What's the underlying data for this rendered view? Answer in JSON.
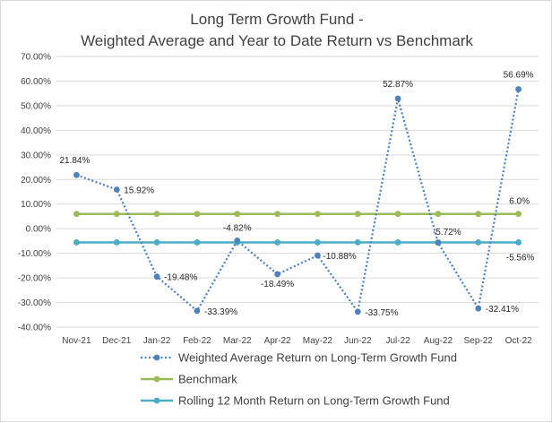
{
  "chart_data": {
    "type": "line",
    "title_line1": "Long Term Growth Fund -",
    "title_line2": "Weighted Average and Year to Date Return vs Benchmark",
    "categories": [
      "Nov-21",
      "Dec-21",
      "Jan-22",
      "Feb-22",
      "Mar-22",
      "Apr-22",
      "May-22",
      "Jun-22",
      "Jul-22",
      "Aug-22",
      "Sep-22",
      "Oct-22"
    ],
    "y_ticks": [
      "70.00%",
      "60.00%",
      "50.00%",
      "40.00%",
      "30.00%",
      "20.00%",
      "10.00%",
      "0.00%",
      "-10.00%",
      "-20.00%",
      "-30.00%",
      "-40.00%"
    ],
    "ylim": [
      -40,
      70
    ],
    "series": [
      {
        "name": "Weighted Average Return on Long-Term Growth Fund",
        "color": "#4f81bd",
        "style": "dotted-markers",
        "values": [
          21.84,
          15.92,
          -19.48,
          -33.39,
          -4.82,
          -18.49,
          -10.88,
          -33.75,
          52.87,
          -5.72,
          -32.41,
          56.69
        ],
        "labels": [
          "21.84%",
          "15.92%",
          "-19.48%",
          "-33.39%",
          "-4.82%",
          "-18.49%",
          "-10.88%",
          "-33.75%",
          "52.87%",
          "-5.72%",
          "-32.41%",
          "56.69%"
        ]
      },
      {
        "name": "Benchmark",
        "color": "#9bbb59",
        "style": "solid-markers",
        "values": [
          6.0,
          6.0,
          6.0,
          6.0,
          6.0,
          6.0,
          6.0,
          6.0,
          6.0,
          6.0,
          6.0,
          6.0
        ],
        "end_label": "6.0%"
      },
      {
        "name": "Rolling 12 Month Return on Long-Term Growth Fund",
        "color": "#4bacc6",
        "style": "solid-markers",
        "values": [
          -5.56,
          -5.56,
          -5.56,
          -5.56,
          -5.56,
          -5.56,
          -5.56,
          -5.56,
          -5.56,
          -5.56,
          -5.56,
          -5.56
        ],
        "end_label": "-5.56%"
      }
    ]
  }
}
